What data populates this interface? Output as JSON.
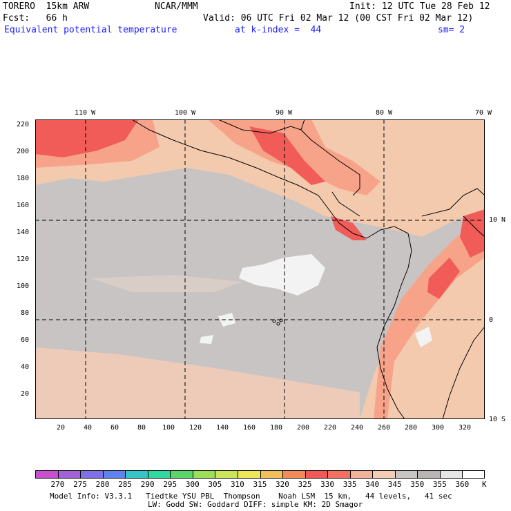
{
  "header": {
    "model": "TORERO  15km ARW",
    "org": "NCAR/MMM",
    "init": "Init: 12 UTC Tue 28 Feb 12",
    "fcst": "Fcst:   66 h",
    "valid": "Valid: 06 UTC Fri 02 Mar 12 (00 CST Fri 02 Mar 12)",
    "field": "Equivalent potential temperature",
    "level": "at k-index =  44",
    "smooth": "sm= 2"
  },
  "map": {
    "lon_labels": [
      "110 W",
      "100 W",
      "90 W",
      "80 W",
      "70 W"
    ],
    "lat_labels": [
      "10 N",
      "0",
      "10 S"
    ],
    "y_ticks": [
      "220",
      "200",
      "180",
      "160",
      "140",
      "120",
      "100",
      "80",
      "60",
      "40",
      "20"
    ],
    "x_ticks": [
      "20",
      "40",
      "60",
      "80",
      "100",
      "120",
      "140",
      "160",
      "180",
      "200",
      "220",
      "240",
      "260",
      "280",
      "300",
      "320"
    ]
  },
  "colorbar": {
    "unit": "K",
    "labels": [
      "270",
      "275",
      "280",
      "285",
      "290",
      "295",
      "300",
      "305",
      "310",
      "315",
      "320",
      "325",
      "330",
      "335",
      "340",
      "345",
      "350",
      "355",
      "360"
    ],
    "colors": [
      "#c84fd0",
      "#a462d8",
      "#7e70e8",
      "#5f82ee",
      "#36c4c6",
      "#30d9a0",
      "#5ad56a",
      "#9ce05a",
      "#c8e658",
      "#ece658",
      "#f2c05a",
      "#f28a5a",
      "#f25858",
      "#f57060",
      "#f4b29a",
      "#f3cdb6",
      "#c9c5c4",
      "#b7b4b3",
      "#e6e6e6",
      "#ffffff"
    ]
  },
  "footer": {
    "line1": "Model Info: V3.3.1   Tiedtke YSU PBL  Thompson    Noah LSM  15 km,   44 levels,   41 sec",
    "line2": "LW: Godd SW: Goddard DIFF: simple KM: 2D Smagor"
  }
}
